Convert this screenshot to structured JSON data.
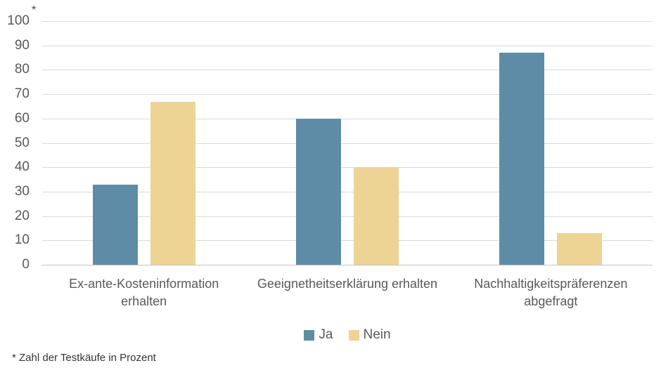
{
  "chart_data": {
    "type": "bar",
    "categories": [
      "Ex-ante-Kosteninformation erhalten",
      "Geeignetheitserklärung erhalten",
      "Nachhaltigkeitspräferenzen abgefragt"
    ],
    "category_lines": [
      [
        "Ex-ante-Kosteninformation",
        "erhalten"
      ],
      [
        "Geeignetheitserklärung erhalten"
      ],
      [
        "Nachhaltigkeitspräferenzen",
        "abgefragt"
      ]
    ],
    "series": [
      {
        "name": "Ja",
        "color": "#5E8CA7",
        "values": [
          33,
          60,
          87
        ]
      },
      {
        "name": "Nein",
        "color": "#EDD394",
        "values": [
          67,
          40,
          13
        ]
      }
    ],
    "title": "",
    "xlabel": "",
    "ylabel": "",
    "ylim": [
      0,
      100
    ],
    "yticks": [
      0,
      10,
      20,
      30,
      40,
      50,
      60,
      70,
      80,
      90,
      100
    ],
    "grid": true,
    "legend_position": "bottom",
    "axis_note": "*",
    "footnote": "* Zahl der Testkäufe in Prozent"
  },
  "colors": {
    "gridline": "#d9d9d9",
    "baseline": "#c3c3c3",
    "axis_text": "#595959",
    "footnote_text": "#333333",
    "background": "#ffffff"
  }
}
